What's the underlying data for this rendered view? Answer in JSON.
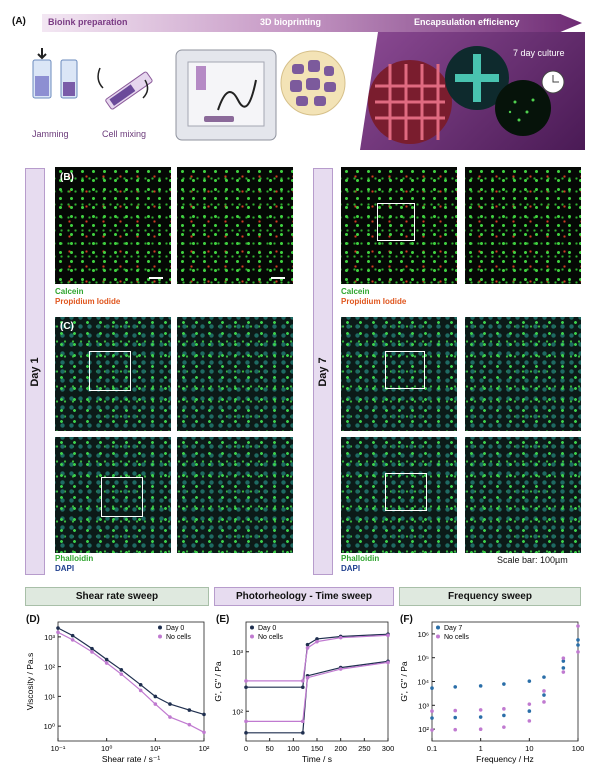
{
  "panel_labels": {
    "A": "(A)",
    "B": "(B)",
    "C": "(C)",
    "D": "(D)",
    "E": "(E)",
    "F": "(F)"
  },
  "banner": {
    "step1": "Bioink preparation",
    "step2": "3D bioprinting",
    "step3": "Encapsulation efficiency"
  },
  "panelA": {
    "jamming": "Jamming",
    "cell_mixing": "Cell mixing",
    "culture": "7 day culture"
  },
  "sidebars": {
    "day1": "Day 1",
    "day7": "Day 7"
  },
  "stains": {
    "calcein": "Calcein",
    "pi": "Propidium Iodide",
    "phalloidin": "Phalloidin",
    "dapi": "DAPI"
  },
  "scale_bar": "Scale bar: 100µm",
  "section_headers": {
    "D": "Shear rate sweep",
    "E": "Photorheology - Time sweep",
    "F": "Frequency sweep"
  },
  "chart_data": [
    {
      "type": "line",
      "id": "D",
      "xlabel": "Shear rate / s⁻¹",
      "ylabel": "Viscosity / Pa.s",
      "xscale": "log",
      "yscale": "log",
      "xlim": [
        0.1,
        100
      ],
      "ylim": [
        0.5,
        1500
      ],
      "xticks": [
        "10⁻¹",
        "10⁰",
        "10¹",
        "10²"
      ],
      "yticks": [
        "10⁰",
        "10¹",
        "10²",
        "10³"
      ],
      "legend": "top-right",
      "series": [
        {
          "name": "Day 0",
          "color": "#1f2f4f",
          "x": [
            0.1,
            0.2,
            0.5,
            1,
            2,
            5,
            10,
            20,
            50,
            100
          ],
          "y": [
            1000,
            600,
            250,
            120,
            60,
            22,
            10,
            6,
            4,
            3
          ]
        },
        {
          "name": "No cells",
          "color": "#c07ad0",
          "x": [
            0.1,
            0.2,
            0.5,
            1,
            2,
            5,
            10,
            20,
            50,
            100
          ],
          "y": [
            750,
            450,
            200,
            95,
            45,
            15,
            6,
            2.5,
            1.5,
            0.9
          ]
        }
      ]
    },
    {
      "type": "line",
      "id": "E",
      "xlabel": "Time / s",
      "ylabel": "G', G'' / Pa",
      "yscale": "log",
      "xlim": [
        0,
        300
      ],
      "ylim": [
        30,
        2000
      ],
      "xticks": [
        "0",
        "50",
        "100",
        "150",
        "200",
        "250",
        "300"
      ],
      "yticks": [
        "10²",
        "10³"
      ],
      "legend": "top-left",
      "series": [
        {
          "name": "Day 0",
          "color": "#1f2f4f",
          "x": [
            0,
            120,
            130,
            150,
            200,
            300
          ],
          "y": [
            200,
            200,
            900,
            1100,
            1200,
            1300
          ]
        },
        {
          "name": "No cells",
          "color": "#c07ad0",
          "x": [
            0,
            120,
            130,
            150,
            200,
            300
          ],
          "y": [
            250,
            250,
            800,
            1000,
            1150,
            1250
          ]
        },
        {
          "name": "",
          "color": "#1f2f4f",
          "x": [
            0,
            120,
            130,
            200,
            300
          ],
          "y": [
            40,
            40,
            300,
            400,
            500
          ]
        },
        {
          "name": "",
          "color": "#c07ad0",
          "x": [
            0,
            120,
            130,
            200,
            300
          ],
          "y": [
            60,
            60,
            280,
            380,
            480
          ]
        }
      ]
    },
    {
      "type": "scatter",
      "id": "F",
      "xlabel": "Frequency / Hz",
      "ylabel": "G', G'' / Pa",
      "xscale": "log",
      "yscale": "log",
      "xlim": [
        0.1,
        100
      ],
      "ylim": [
        20,
        3000000
      ],
      "xticks": [
        "0.1",
        "1",
        "10",
        "100"
      ],
      "yticks": [
        "10²",
        "10³",
        "10⁴",
        "10⁵",
        "10⁶"
      ],
      "legend": "top-left",
      "series": [
        {
          "name": "Day 7",
          "color": "#2a6ea8",
          "x": [
            0.1,
            0.3,
            1,
            3,
            10,
            20,
            50,
            100
          ],
          "y": [
            4000,
            4500,
            5000,
            6000,
            8000,
            12000,
            60000,
            500000
          ]
        },
        {
          "name": "No cells",
          "color": "#c07ad0",
          "x": [
            0.1,
            0.3,
            1,
            3,
            10,
            20,
            50,
            100
          ],
          "y": [
            400,
            420,
            450,
            500,
            800,
            3000,
            80000,
            2000000
          ]
        },
        {
          "name": "",
          "color": "#2a6ea8",
          "x": [
            0.1,
            0.3,
            1,
            3,
            10,
            20,
            50,
            100
          ],
          "y": [
            200,
            210,
            220,
            260,
            400,
            2000,
            30000,
            300000
          ]
        },
        {
          "name": "",
          "color": "#c07ad0",
          "x": [
            0.1,
            0.3,
            1,
            3,
            10,
            20,
            50,
            100
          ],
          "y": [
            60,
            62,
            65,
            80,
            150,
            1000,
            20000,
            150000
          ]
        }
      ]
    }
  ]
}
